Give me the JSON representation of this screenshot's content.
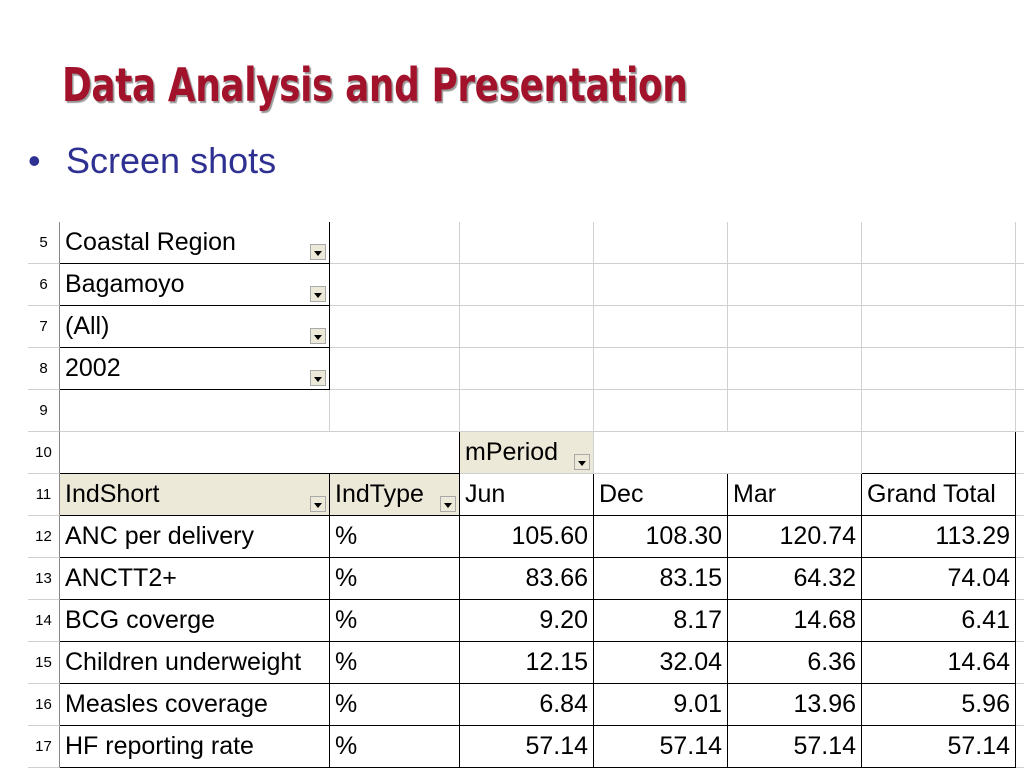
{
  "title": "Data Analysis and Presentation",
  "bullets": [
    "Screen shots"
  ],
  "sheet": {
    "row_numbers": [
      5,
      6,
      7,
      8,
      9,
      10,
      11,
      12,
      13,
      14,
      15,
      16,
      17
    ],
    "page_fields": [
      "Coastal Region",
      "Bagamoyo",
      "(All)",
      "2002"
    ],
    "column_field": "mPeriod",
    "header": [
      "IndShort",
      "IndType",
      "Jun",
      "Dec",
      "Mar",
      "Grand Total"
    ],
    "rows": [
      [
        "ANC per delivery",
        "%",
        "105.60",
        "108.30",
        "120.74",
        "113.29"
      ],
      [
        "ANCTT2+",
        "%",
        "83.66",
        "83.15",
        "64.32",
        "74.04"
      ],
      [
        "BCG coverge",
        "%",
        "9.20",
        "8.17",
        "14.68",
        "6.41"
      ],
      [
        "Children underweight",
        "%",
        "12.15",
        "32.04",
        "6.36",
        "14.64"
      ],
      [
        "Measles coverage",
        "%",
        "6.84",
        "9.01",
        "13.96",
        "5.96"
      ],
      [
        "HF reporting rate",
        "%",
        "57.14",
        "57.14",
        "57.14",
        "57.14"
      ]
    ]
  }
}
